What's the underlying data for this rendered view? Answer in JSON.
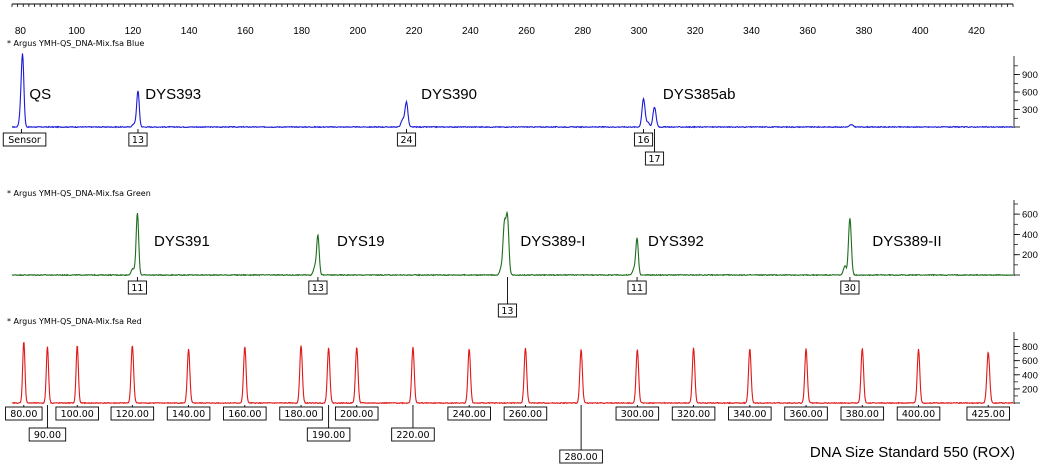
{
  "chart_data": {
    "type": "line",
    "x_axis": {
      "range": [
        77,
        433
      ],
      "tick_labels": [
        "80",
        "100",
        "120",
        "140",
        "160",
        "180",
        "200",
        "220",
        "240",
        "260",
        "280",
        "300",
        "320",
        "340",
        "360",
        "380",
        "400",
        "420"
      ],
      "tick_values": [
        80,
        100,
        120,
        140,
        160,
        180,
        200,
        220,
        240,
        260,
        280,
        300,
        320,
        340,
        360,
        380,
        400,
        420
      ]
    },
    "panels": [
      {
        "header": "* Argus YMH-QS_DNA-Mix.fsa   Blue",
        "color": "#1a1ad6",
        "y_range": [
          0,
          1150
        ],
        "y_ticks": [
          300,
          600,
          900
        ],
        "y_tick_labels": [
          "300",
          "600",
          "900"
        ],
        "peaks": [
          {
            "x": 80.8,
            "height": 1100,
            "width": 0.45
          },
          {
            "x": 80.2,
            "height": 300,
            "width": 0.5
          },
          {
            "x": 121.8,
            "height": 620,
            "width": 0.45
          },
          {
            "x": 120.5,
            "height": 60,
            "width": 0.6
          },
          {
            "x": 217.3,
            "height": 420,
            "width": 0.5
          },
          {
            "x": 216.0,
            "height": 130,
            "width": 0.6
          },
          {
            "x": 301.6,
            "height": 480,
            "width": 0.55
          },
          {
            "x": 303.2,
            "height": 80,
            "width": 0.5
          },
          {
            "x": 305.5,
            "height": 340,
            "width": 0.55
          },
          {
            "x": 375.5,
            "height": 40,
            "width": 0.6
          }
        ],
        "peak_labels": [
          {
            "text": "QS",
            "x": 83.2
          },
          {
            "text": "DYS393",
            "x": 124.4
          },
          {
            "text": "DYS390",
            "x": 222.5
          },
          {
            "text": "DYS385ab",
            "x": 308.5
          }
        ],
        "allele_boxes": [
          {
            "text": "Sensor",
            "x": 80.4,
            "row": 0
          },
          {
            "text": "13",
            "x": 121.8,
            "row": 0
          },
          {
            "text": "24",
            "x": 217.3,
            "row": 0
          },
          {
            "text": "16",
            "x": 301.6,
            "row": 0
          },
          {
            "text": "17",
            "x": 305.5,
            "row": 1
          }
        ]
      },
      {
        "header": "* Argus YMH-QS_DNA-Mix.fsa   Green",
        "color": "#1e6e1e",
        "y_range": [
          0,
          700
        ],
        "y_ticks": [
          200,
          400,
          600
        ],
        "y_tick_labels": [
          "200",
          "400",
          "600"
        ],
        "peaks": [
          {
            "x": 121.6,
            "height": 610,
            "width": 0.45
          },
          {
            "x": 120.0,
            "height": 60,
            "width": 0.6
          },
          {
            "x": 185.8,
            "height": 390,
            "width": 0.45
          },
          {
            "x": 184.7,
            "height": 80,
            "width": 0.5
          },
          {
            "x": 253.2,
            "height": 560,
            "width": 0.5
          },
          {
            "x": 252.1,
            "height": 480,
            "width": 0.5
          },
          {
            "x": 250.9,
            "height": 60,
            "width": 0.5
          },
          {
            "x": 299.3,
            "height": 360,
            "width": 0.45
          },
          {
            "x": 298.2,
            "height": 60,
            "width": 0.5
          },
          {
            "x": 375.0,
            "height": 560,
            "width": 0.5
          },
          {
            "x": 373.2,
            "height": 90,
            "width": 0.5
          }
        ],
        "peak_labels": [
          {
            "text": "DYS391",
            "x": 127.5
          },
          {
            "text": "DYS19",
            "x": 192.6
          },
          {
            "text": "DYS389-I",
            "x": 257.8
          },
          {
            "text": "DYS392",
            "x": 303.2
          },
          {
            "text": "DYS389-II",
            "x": 383.0
          }
        ],
        "allele_boxes": [
          {
            "text": "11",
            "x": 121.6,
            "row": 0
          },
          {
            "text": "13",
            "x": 185.8,
            "row": 0
          },
          {
            "text": "13",
            "x": 253.2,
            "row": 1
          },
          {
            "text": "11",
            "x": 299.3,
            "row": 0
          },
          {
            "text": "30",
            "x": 375.0,
            "row": 0
          }
        ]
      },
      {
        "header": "* Argus YMH-QS_DNA-Mix.fsa   Red",
        "color": "#e01818",
        "y_range": [
          0,
          950
        ],
        "y_ticks": [
          200,
          400,
          600,
          800
        ],
        "y_tick_labels": [
          "200",
          "400",
          "600",
          "800"
        ],
        "peaks": [
          {
            "x": 81.2,
            "height": 880,
            "width": 0.4
          },
          {
            "x": 89.6,
            "height": 800,
            "width": 0.4
          },
          {
            "x": 100.2,
            "height": 820,
            "width": 0.4
          },
          {
            "x": 119.8,
            "height": 820,
            "width": 0.45
          },
          {
            "x": 139.8,
            "height": 760,
            "width": 0.45
          },
          {
            "x": 159.8,
            "height": 800,
            "width": 0.45
          },
          {
            "x": 179.8,
            "height": 820,
            "width": 0.45
          },
          {
            "x": 189.6,
            "height": 780,
            "width": 0.45
          },
          {
            "x": 199.6,
            "height": 790,
            "width": 0.45
          },
          {
            "x": 219.6,
            "height": 790,
            "width": 0.45
          },
          {
            "x": 239.6,
            "height": 770,
            "width": 0.45
          },
          {
            "x": 259.6,
            "height": 780,
            "width": 0.45
          },
          {
            "x": 279.4,
            "height": 760,
            "width": 0.45
          },
          {
            "x": 299.4,
            "height": 760,
            "width": 0.45
          },
          {
            "x": 319.4,
            "height": 780,
            "width": 0.45
          },
          {
            "x": 339.4,
            "height": 770,
            "width": 0.45
          },
          {
            "x": 359.4,
            "height": 770,
            "width": 0.45
          },
          {
            "x": 379.4,
            "height": 780,
            "width": 0.45
          },
          {
            "x": 399.4,
            "height": 760,
            "width": 0.45
          },
          {
            "x": 424.2,
            "height": 720,
            "width": 0.5
          }
        ],
        "allele_boxes": [
          {
            "text": "80.00",
            "x": 81.2,
            "row": 0
          },
          {
            "text": "90.00",
            "x": 89.6,
            "row": 1
          },
          {
            "text": "100.00",
            "x": 100.2,
            "row": 0
          },
          {
            "text": "120.00",
            "x": 119.8,
            "row": 0
          },
          {
            "text": "140.00",
            "x": 139.8,
            "row": 0
          },
          {
            "text": "160.00",
            "x": 159.8,
            "row": 0
          },
          {
            "text": "180.00",
            "x": 179.8,
            "row": 0
          },
          {
            "text": "190.00",
            "x": 189.6,
            "row": 1
          },
          {
            "text": "200.00",
            "x": 199.6,
            "row": 0
          },
          {
            "text": "220.00",
            "x": 219.6,
            "row": 1
          },
          {
            "text": "240.00",
            "x": 239.6,
            "row": 0
          },
          {
            "text": "260.00",
            "x": 259.6,
            "row": 0
          },
          {
            "text": "280.00",
            "x": 279.4,
            "row": 2
          },
          {
            "text": "300.00",
            "x": 299.4,
            "row": 0
          },
          {
            "text": "320.00",
            "x": 319.4,
            "row": 0
          },
          {
            "text": "340.00",
            "x": 339.4,
            "row": 0
          },
          {
            "text": "360.00",
            "x": 359.4,
            "row": 0
          },
          {
            "text": "380.00",
            "x": 379.4,
            "row": 0
          },
          {
            "text": "400.00",
            "x": 399.4,
            "row": 0
          },
          {
            "text": "425.00",
            "x": 424.2,
            "row": 0
          }
        ]
      }
    ],
    "annotation": "DNA Size Standard 550 (ROX)"
  }
}
